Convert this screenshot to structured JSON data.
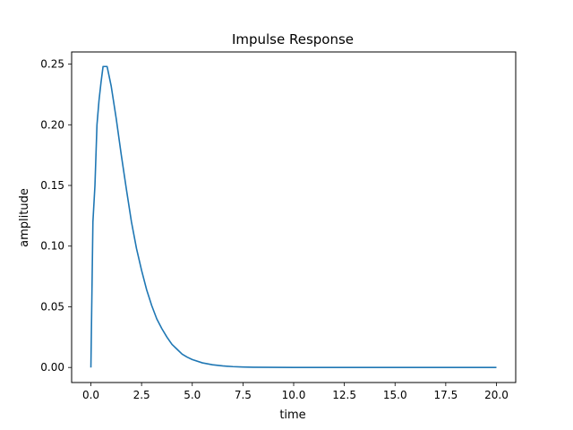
{
  "chart_data": {
    "type": "line",
    "title": "Impulse Response",
    "xlabel": "time",
    "ylabel": "amplitude",
    "xlim": [
      -0.95,
      20.95
    ],
    "ylim": [
      -0.0124,
      0.26
    ],
    "xticks": [
      0.0,
      2.5,
      5.0,
      7.5,
      10.0,
      12.5,
      15.0,
      17.5,
      20.0
    ],
    "xtick_labels": [
      "0.0",
      "2.5",
      "5.0",
      "7.5",
      "10.0",
      "12.5",
      "15.0",
      "17.5",
      "20.0"
    ],
    "yticks": [
      0.0,
      0.05,
      0.1,
      0.15,
      0.2,
      0.25
    ],
    "ytick_labels": [
      "0.00",
      "0.05",
      "0.10",
      "0.15",
      "0.20",
      "0.25"
    ],
    "grid": false,
    "series": [
      {
        "color": "#1f77b4",
        "x": [
          0,
          0.1,
          0.2,
          0.3,
          0.4,
          0.5,
          0.6,
          0.7,
          0.8,
          0.9,
          1.0,
          1.25,
          1.5,
          1.75,
          2.0,
          2.25,
          2.5,
          2.75,
          3.0,
          3.25,
          3.5,
          3.75,
          4.0,
          4.25,
          4.5,
          4.75,
          5.0,
          5.5,
          6.0,
          6.5,
          7.0,
          7.5,
          8.0,
          9.0,
          10.0,
          11.0,
          12.0,
          14.0,
          16.0,
          18.0,
          20.0
        ],
        "y": [
          0.0,
          0.12,
          0.15,
          0.2,
          0.22,
          0.235,
          0.248,
          0.248,
          0.248,
          0.24,
          0.232,
          0.205,
          0.175,
          0.147,
          0.12,
          0.098,
          0.08,
          0.064,
          0.051,
          0.04,
          0.032,
          0.025,
          0.019,
          0.015,
          0.011,
          0.0085,
          0.0065,
          0.0038,
          0.0022,
          0.0013,
          0.0007,
          0.0004,
          0.0002,
          0.0001,
          0.0,
          0.0,
          0.0,
          0.0,
          0.0,
          0.0,
          0.0
        ]
      }
    ]
  }
}
